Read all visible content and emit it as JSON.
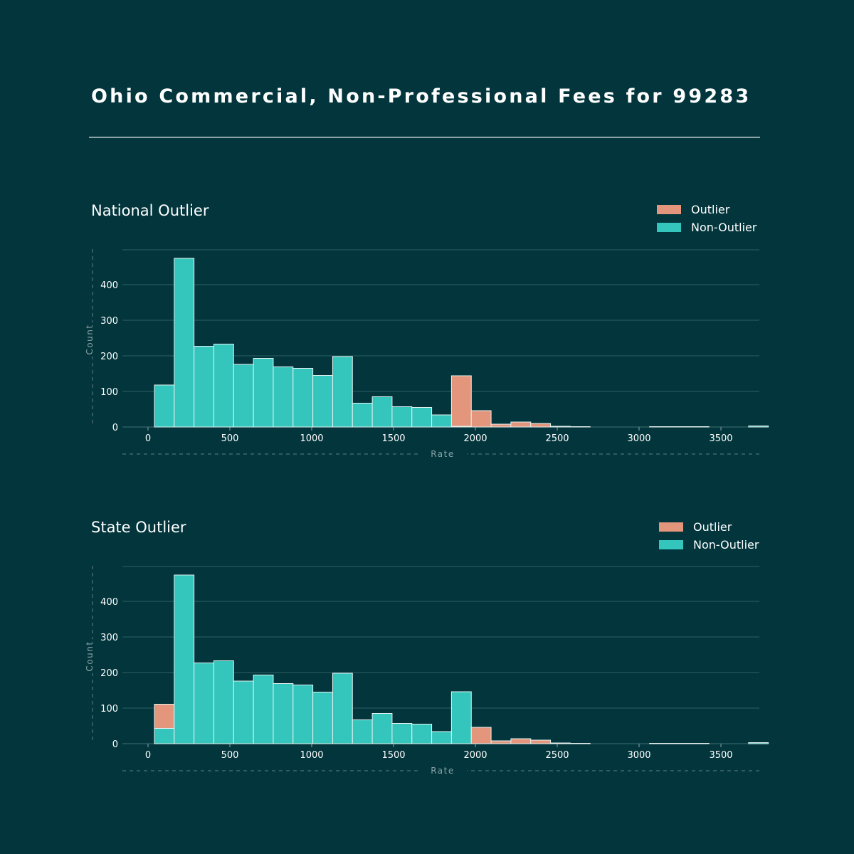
{
  "title": "Ohio Commercial, Non-Professional Fees for 99283",
  "colors": {
    "outlier": "#e3967b",
    "non_outlier": "#34c6bc",
    "background": "#02353c"
  },
  "chart_data": [
    {
      "type": "bar",
      "subtype": "stacked-histogram",
      "title": "National Outlier",
      "xlabel": "Rate",
      "ylabel": "Count",
      "xlim": [
        -160,
        3730
      ],
      "ylim": [
        0,
        500
      ],
      "xticks": [
        0,
        500,
        1000,
        1500,
        2000,
        2500,
        3000,
        3500
      ],
      "yticks": [
        0,
        100,
        200,
        300,
        400
      ],
      "grid": true,
      "legend": {
        "position": "top-right",
        "entries": [
          "Outlier",
          "Non-Outlier"
        ]
      },
      "bin_start": 39,
      "bin_width": 121,
      "series": [
        {
          "name": "Non-Outlier",
          "values": [
            118,
            474,
            227,
            233,
            176,
            193,
            169,
            165,
            145,
            198,
            67,
            85,
            57,
            55,
            34,
            2,
            0,
            0,
            0,
            0,
            2,
            1,
            0,
            0,
            0,
            1,
            1,
            1,
            0,
            0,
            3
          ]
        },
        {
          "name": "Outlier",
          "values": [
            0,
            0,
            0,
            0,
            0,
            0,
            0,
            0,
            0,
            0,
            0,
            0,
            0,
            0,
            0,
            142,
            46,
            8,
            14,
            10,
            0,
            0,
            0,
            0,
            0,
            0,
            0,
            0,
            0,
            0,
            0
          ]
        }
      ]
    },
    {
      "type": "bar",
      "subtype": "stacked-histogram",
      "title": "State Outlier",
      "xlabel": "Rate",
      "ylabel": "Count",
      "xlim": [
        -160,
        3730
      ],
      "ylim": [
        0,
        500
      ],
      "xticks": [
        0,
        500,
        1000,
        1500,
        2000,
        2500,
        3000,
        3500
      ],
      "yticks": [
        0,
        100,
        200,
        300,
        400
      ],
      "grid": true,
      "legend": {
        "position": "top-right",
        "entries": [
          "Outlier",
          "Non-Outlier"
        ]
      },
      "bin_start": 39,
      "bin_width": 121,
      "series": [
        {
          "name": "Non-Outlier",
          "values": [
            43,
            474,
            227,
            233,
            176,
            193,
            169,
            165,
            145,
            198,
            67,
            85,
            57,
            55,
            34,
            146,
            0,
            0,
            0,
            0,
            2,
            1,
            0,
            0,
            0,
            1,
            1,
            1,
            0,
            0,
            3
          ]
        },
        {
          "name": "Outlier",
          "values": [
            68,
            0,
            0,
            0,
            0,
            0,
            0,
            0,
            0,
            0,
            0,
            0,
            0,
            0,
            0,
            0,
            46,
            8,
            14,
            10,
            0,
            0,
            0,
            0,
            0,
            0,
            0,
            0,
            0,
            0,
            0
          ]
        }
      ]
    }
  ]
}
